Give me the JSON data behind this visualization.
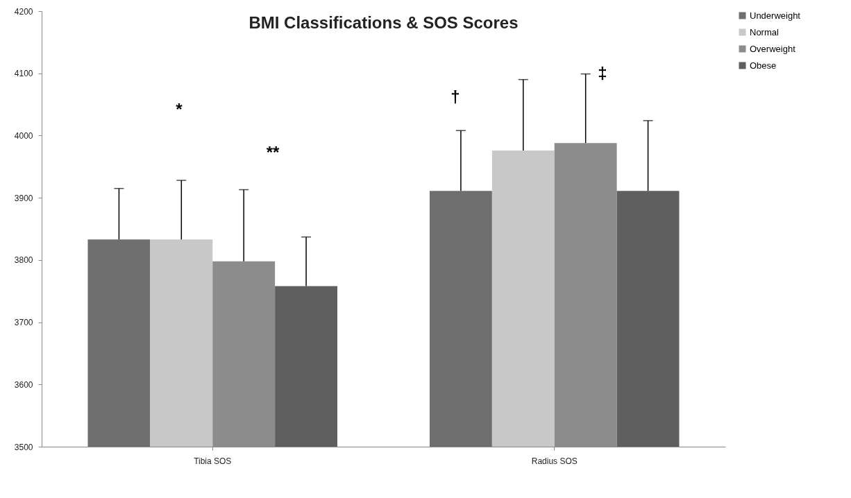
{
  "chart_data": {
    "type": "bar",
    "title": "BMI Classifications & SOS Scores",
    "categories": [
      "Tibia SOS",
      "Radius SOS"
    ],
    "series": [
      {
        "name": "Underweight",
        "color": "#6e6e6e",
        "values": [
          3833,
          3911
        ],
        "errors": [
          [
            3833,
            3915
          ],
          [
            3911,
            4008
          ]
        ]
      },
      {
        "name": "Normal",
        "color": "#c8c8c8",
        "values": [
          3833,
          3976
        ],
        "errors": [
          [
            3833,
            3928
          ],
          [
            3976,
            4090
          ]
        ]
      },
      {
        "name": "Overweight",
        "color": "#8c8c8c",
        "values": [
          3798,
          3988
        ],
        "errors": [
          [
            3798,
            3913
          ],
          [
            3988,
            4099
          ]
        ]
      },
      {
        "name": "Obese",
        "color": "#5f5f5f",
        "values": [
          3758,
          3911
        ],
        "errors": [
          [
            3758,
            3837
          ],
          [
            3911,
            4024
          ]
        ]
      }
    ],
    "ylim": [
      3500,
      4200
    ],
    "yticks": [
      3500,
      3600,
      3700,
      3800,
      3900,
      4000,
      4100,
      4200
    ],
    "grid": false,
    "legend": "right",
    "annotations": [
      "*",
      "**",
      "†",
      "‡"
    ]
  }
}
